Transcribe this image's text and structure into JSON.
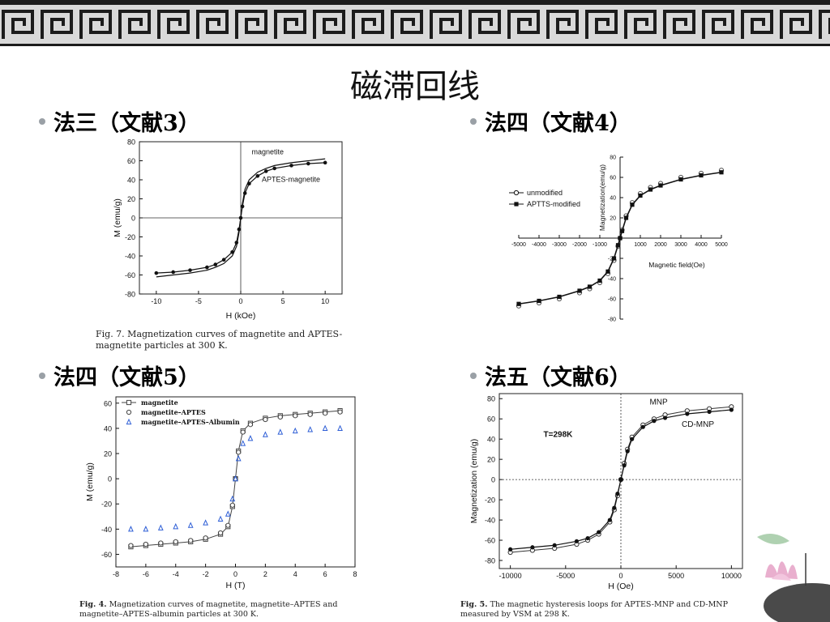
{
  "slide_title": "磁滞回线",
  "headings": [
    "法三（文献3）",
    "法四（文献4）",
    "法四（文献5）",
    "法五（文献6）"
  ],
  "colors": {
    "banner_dark": "#1c1c1c",
    "banner_light": "#d9d9d9",
    "open_series": "#2f5fd6"
  },
  "captions": {
    "p1": "Fig. 7. Magnetization curves of magnetite and APTES-magnetite particles at 300 K.",
    "p3_label": "Fig. 4.",
    "p3_text": "Magnetization curves of magnetite, magnetite–APTES and magnetite–APTES-albumin particles at 300 K.",
    "p4_label": "Fig. 5.",
    "p4_text": "The magnetic hysteresis loops for APTES-MNP and CD-MNP measured by VSM at 298 K."
  },
  "chart_data": [
    {
      "type": "line",
      "xlabel": "H (kOe)",
      "ylabel": "M (emu/g)",
      "xlim": [
        -12,
        12
      ],
      "ylim": [
        -80,
        80
      ],
      "xticks": [
        -10,
        -5,
        0,
        5,
        10
      ],
      "yticks": [
        -80,
        -60,
        -40,
        -20,
        0,
        20,
        40,
        60,
        80
      ],
      "grid": false,
      "zero_lines": true,
      "annotations": [
        "magnetite",
        "APTES-magnetite"
      ],
      "series": [
        {
          "name": "magnetite",
          "x": [
            -10,
            -8,
            -6,
            -4,
            -3,
            -2,
            -1,
            -0.5,
            -0.2,
            0,
            0.2,
            0.5,
            1,
            2,
            3,
            4,
            6,
            8,
            10
          ],
          "y": [
            -62,
            -60,
            -58,
            -55,
            -52,
            -48,
            -40,
            -30,
            -15,
            0,
            15,
            30,
            40,
            48,
            52,
            55,
            58,
            60,
            62
          ]
        },
        {
          "name": "APTES-magnetite",
          "x": [
            -10,
            -8,
            -6,
            -4,
            -3,
            -2,
            -1,
            -0.5,
            -0.2,
            0,
            0.2,
            0.5,
            1,
            2,
            3,
            4,
            6,
            8,
            10
          ],
          "y": [
            -58,
            -57,
            -55,
            -52,
            -49,
            -44,
            -36,
            -26,
            -12,
            0,
            12,
            26,
            36,
            44,
            49,
            52,
            55,
            57,
            58
          ]
        }
      ]
    },
    {
      "type": "line",
      "xlabel": "Magnetic field(Oe)",
      "ylabel": "Magnetization(emu/g)",
      "xlim": [
        -5000,
        5000
      ],
      "ylim": [
        -80,
        80
      ],
      "xticks": [
        -5000,
        -4000,
        -3000,
        -2000,
        -1000,
        0,
        1000,
        2000,
        3000,
        4000,
        5000
      ],
      "xtick_labels": [
        "-5000",
        "-4000",
        "-3000",
        "-2000",
        "-1000",
        "",
        "1000",
        "2000",
        "3000",
        "4000",
        "5000"
      ],
      "yticks": [
        -80,
        -60,
        -40,
        -20,
        0,
        20,
        40,
        60,
        80
      ],
      "ytick_labels": [
        "-80",
        "-60",
        "-40",
        "-20",
        "",
        "20",
        "40",
        "60",
        "80"
      ],
      "legend_position": "left",
      "series": [
        {
          "name": "unmodified",
          "marker": "open-circle",
          "x": [
            -5000,
            -4000,
            -3000,
            -2000,
            -1500,
            -1000,
            -600,
            -300,
            -100,
            0,
            100,
            300,
            600,
            1000,
            1500,
            2000,
            3000,
            4000,
            5000
          ],
          "y": [
            -67,
            -64,
            -60,
            -54,
            -50,
            -44,
            -35,
            -22,
            -8,
            0,
            8,
            22,
            35,
            44,
            50,
            54,
            60,
            64,
            67
          ]
        },
        {
          "name": "APTTS-modified",
          "marker": "filled-square",
          "x": [
            -5000,
            -4000,
            -3000,
            -2000,
            -1500,
            -1000,
            -600,
            -300,
            -100,
            0,
            100,
            300,
            600,
            1000,
            1500,
            2000,
            3000,
            4000,
            5000
          ],
          "y": [
            -65,
            -62,
            -58,
            -52,
            -48,
            -42,
            -33,
            -20,
            -7,
            0,
            7,
            20,
            33,
            42,
            48,
            52,
            58,
            62,
            65
          ]
        }
      ]
    },
    {
      "type": "line",
      "xlabel": "H (T)",
      "ylabel": "M (emu/g)",
      "xlim": [
        -8,
        8
      ],
      "ylim": [
        -70,
        65
      ],
      "xticks": [
        -8,
        -6,
        -4,
        -2,
        0,
        2,
        4,
        6,
        8
      ],
      "yticks": [
        -60,
        -40,
        -20,
        0,
        20,
        40,
        60
      ],
      "legend_position": "top-left",
      "series": [
        {
          "name": "magnetite",
          "marker": "open-square",
          "x": [
            -7,
            -6,
            -5,
            -4,
            -3,
            -2,
            -1,
            -0.5,
            -0.2,
            0,
            0.2,
            0.5,
            1,
            2,
            3,
            4,
            5,
            6,
            7
          ],
          "y": [
            -54,
            -53,
            -52,
            -51,
            -50,
            -48,
            -44,
            -38,
            -22,
            0,
            22,
            38,
            44,
            48,
            50,
            51,
            52,
            53,
            54
          ]
        },
        {
          "name": "magnetite–APTES",
          "marker": "open-circle",
          "x": [
            -7,
            -6,
            -5,
            -4,
            -3,
            -2,
            -1,
            -0.5,
            -0.2,
            0,
            0.2,
            0.5,
            1,
            2,
            3,
            4,
            5,
            6,
            7
          ],
          "y": [
            -53,
            -52,
            -51,
            -50,
            -49,
            -47,
            -43,
            -37,
            -21,
            0,
            21,
            37,
            43,
            47,
            49,
            50,
            51,
            52,
            53
          ]
        },
        {
          "name": "magnetite–APTES–Albumin",
          "marker": "open-triangle",
          "x": [
            -7,
            -6,
            -5,
            -4,
            -3,
            -2,
            -1,
            -0.5,
            -0.2,
            0,
            0.2,
            0.5,
            1,
            2,
            3,
            4,
            5,
            6,
            7
          ],
          "y": [
            -40,
            -40,
            -39,
            -38,
            -37,
            -35,
            -32,
            -28,
            -16,
            0,
            16,
            28,
            32,
            35,
            37,
            38,
            39,
            40,
            40
          ]
        }
      ]
    },
    {
      "type": "line",
      "xlabel": "H (Oe)",
      "ylabel": "Magnetization (emu/g)",
      "xlim": [
        -11000,
        11000
      ],
      "ylim": [
        -88,
        85
      ],
      "xticks": [
        -10000,
        -5000,
        0,
        5000,
        10000
      ],
      "yticks": [
        -80,
        -60,
        -40,
        -20,
        0,
        20,
        40,
        60,
        80
      ],
      "zero_lines": true,
      "annotations": [
        "MNP",
        "CD-MNP",
        "T=298K"
      ],
      "series": [
        {
          "name": "MNP",
          "marker": "open-circle",
          "x": [
            -10000,
            -8000,
            -6000,
            -4000,
            -3000,
            -2000,
            -1000,
            -600,
            -300,
            0,
            300,
            600,
            1000,
            2000,
            3000,
            4000,
            6000,
            8000,
            10000
          ],
          "y": [
            -72,
            -70,
            -68,
            -64,
            -60,
            -54,
            -42,
            -30,
            -16,
            0,
            16,
            30,
            42,
            54,
            60,
            64,
            68,
            70,
            72
          ]
        },
        {
          "name": "CD-MNP",
          "marker": "filled-circle",
          "x": [
            -10000,
            -8000,
            -6000,
            -4000,
            -3000,
            -2000,
            -1000,
            -600,
            -300,
            0,
            300,
            600,
            1000,
            2000,
            3000,
            4000,
            6000,
            8000,
            10000
          ],
          "y": [
            -69,
            -67,
            -65,
            -61,
            -58,
            -52,
            -40,
            -28,
            -14,
            0,
            14,
            28,
            40,
            52,
            58,
            61,
            65,
            67,
            69
          ]
        }
      ]
    }
  ]
}
